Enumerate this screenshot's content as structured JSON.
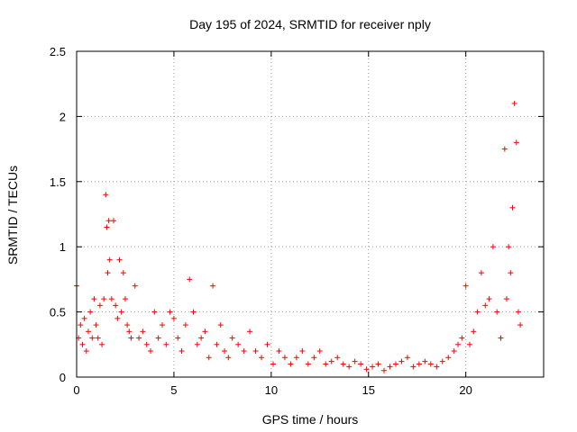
{
  "chart_data": {
    "type": "scatter",
    "title": "Day 195 of 2024, SRMTID for receiver nply",
    "xlabel": "GPS time / hours",
    "ylabel": "SRMTID / TECUs",
    "xlim": [
      0,
      24
    ],
    "ylim": [
      0,
      2.5
    ],
    "x_ticks": [
      0,
      5,
      10,
      15,
      20
    ],
    "x_tick_labels": [
      "0",
      "5",
      "10",
      "15",
      "20"
    ],
    "y_ticks": [
      0,
      0.5,
      1,
      1.5,
      2,
      2.5
    ],
    "y_tick_labels": [
      "0",
      "0.5",
      "1",
      "1.5",
      "2",
      "2.5"
    ],
    "grid": true,
    "marker": "+",
    "marker_color": "#ff0000",
    "series": [
      {
        "name": "SRMTID",
        "x": [
          0.0,
          0.1,
          0.2,
          0.3,
          0.4,
          0.5,
          0.6,
          0.7,
          0.8,
          0.9,
          1.0,
          1.1,
          1.2,
          1.3,
          1.4,
          1.5,
          1.55,
          1.6,
          1.65,
          1.7,
          1.8,
          1.9,
          2.0,
          2.1,
          2.2,
          2.3,
          2.4,
          2.5,
          2.6,
          2.7,
          2.8,
          3.0,
          3.2,
          3.4,
          3.6,
          3.8,
          4.0,
          4.2,
          4.4,
          4.6,
          4.8,
          5.0,
          5.2,
          5.4,
          5.6,
          5.8,
          6.0,
          6.2,
          6.4,
          6.6,
          6.8,
          7.0,
          7.2,
          7.4,
          7.6,
          7.8,
          8.0,
          8.3,
          8.6,
          8.9,
          9.2,
          9.5,
          9.8,
          10.1,
          10.4,
          10.7,
          11.0,
          11.3,
          11.6,
          11.9,
          12.2,
          12.5,
          12.8,
          13.1,
          13.4,
          13.7,
          14.0,
          14.3,
          14.6,
          14.9,
          15.2,
          15.5,
          15.8,
          16.1,
          16.4,
          16.7,
          17.0,
          17.3,
          17.6,
          17.9,
          18.2,
          18.5,
          18.8,
          19.1,
          19.4,
          19.6,
          19.8,
          20.0,
          20.2,
          20.4,
          20.6,
          20.8,
          21.0,
          21.2,
          21.4,
          21.6,
          21.8,
          22.0,
          22.1,
          22.2,
          22.3,
          22.4,
          22.5,
          22.6,
          22.7,
          22.8
        ],
        "y": [
          0.7,
          0.3,
          0.4,
          0.25,
          0.45,
          0.2,
          0.35,
          0.5,
          0.3,
          0.6,
          0.4,
          0.3,
          0.55,
          0.25,
          0.6,
          1.4,
          1.15,
          0.8,
          1.2,
          0.9,
          0.6,
          1.2,
          0.55,
          0.45,
          0.9,
          0.5,
          0.8,
          0.6,
          0.4,
          0.35,
          0.3,
          0.7,
          0.3,
          0.35,
          0.25,
          0.2,
          0.5,
          0.3,
          0.4,
          0.25,
          0.5,
          0.45,
          0.3,
          0.2,
          0.4,
          0.75,
          0.5,
          0.25,
          0.3,
          0.35,
          0.15,
          0.7,
          0.25,
          0.4,
          0.2,
          0.15,
          0.3,
          0.25,
          0.2,
          0.35,
          0.2,
          0.15,
          0.25,
          0.1,
          0.2,
          0.15,
          0.1,
          0.15,
          0.2,
          0.1,
          0.15,
          0.2,
          0.1,
          0.12,
          0.15,
          0.1,
          0.08,
          0.12,
          0.1,
          0.06,
          0.08,
          0.1,
          0.05,
          0.08,
          0.1,
          0.12,
          0.15,
          0.08,
          0.1,
          0.12,
          0.1,
          0.08,
          0.12,
          0.15,
          0.2,
          0.25,
          0.3,
          0.7,
          0.25,
          0.35,
          0.5,
          0.8,
          0.55,
          0.6,
          1.0,
          0.5,
          0.3,
          1.75,
          0.6,
          1.0,
          0.8,
          1.3,
          2.1,
          1.8,
          0.5,
          0.4
        ]
      }
    ]
  }
}
